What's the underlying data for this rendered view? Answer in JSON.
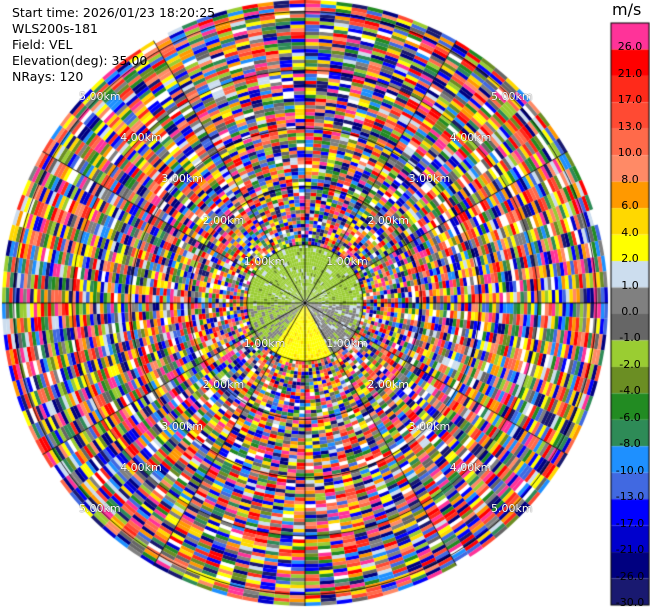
{
  "header": {
    "start_time": "Start time: 2026/01/23 18:20:25",
    "instrument": "WLS200s-181",
    "field": "Field: VEL",
    "elevation": "Elevation(deg): 35.00",
    "nrays": "NRays: 120"
  },
  "colorbar": {
    "unit": "m/s",
    "levels": [
      {
        "label": "26.0",
        "color": "#ff3399"
      },
      {
        "label": "21.0",
        "color": "#ff0000"
      },
      {
        "label": "17.0",
        "color": "#ff2a1a"
      },
      {
        "label": "13.0",
        "color": "#ff4a33"
      },
      {
        "label": "10.0",
        "color": "#ff6a4a"
      },
      {
        "label": "8.0",
        "color": "#ff8a66"
      },
      {
        "label": "6.0",
        "color": "#ff9900"
      },
      {
        "label": "4.0",
        "color": "#ffd800"
      },
      {
        "label": "2.0",
        "color": "#ffff00"
      },
      {
        "label": "1.0",
        "color": "#ccddee"
      },
      {
        "label": "0.0",
        "color": "#808080"
      },
      {
        "label": "-1.0",
        "color": "#666666"
      },
      {
        "label": "-2.0",
        "color": "#9acd32"
      },
      {
        "label": "-4.0",
        "color": "#6b8e23"
      },
      {
        "label": "-6.0",
        "color": "#228b22"
      },
      {
        "label": "-8.0",
        "color": "#2e8b57"
      },
      {
        "label": "-10.0",
        "color": "#1e90ff"
      },
      {
        "label": "-13.0",
        "color": "#4169e1"
      },
      {
        "label": "-17.0",
        "color": "#0000ff"
      },
      {
        "label": "-21.0",
        "color": "#0000cd"
      },
      {
        "label": "-26.0",
        "color": "#000080"
      },
      {
        "label": "-30.0",
        "color": "#191970"
      }
    ]
  },
  "chart_data": {
    "type": "heatmap",
    "projection": "polar (PPI)",
    "field": "VEL",
    "unit": "m/s",
    "nrays": 120,
    "range_ring_labels": [
      "1.00km",
      "2.00km",
      "3.00km",
      "4.00km",
      "5.00km"
    ],
    "range_rings_km": [
      1,
      2,
      3,
      4,
      5
    ],
    "max_range_km": 5.2,
    "ring_label_bearings_deg": [
      315,
      45,
      135,
      225
    ],
    "colorbar_ticks": [
      26.0,
      21.0,
      17.0,
      13.0,
      10.0,
      8.0,
      6.0,
      4.0,
      2.0,
      1.0,
      0.0,
      -1.0,
      -2.0,
      -4.0,
      -6.0,
      -8.0,
      -10.0,
      -13.0,
      -17.0,
      -21.0,
      -26.0,
      -30.0
    ],
    "near_field_note_km": 1.0,
    "grid": true
  }
}
